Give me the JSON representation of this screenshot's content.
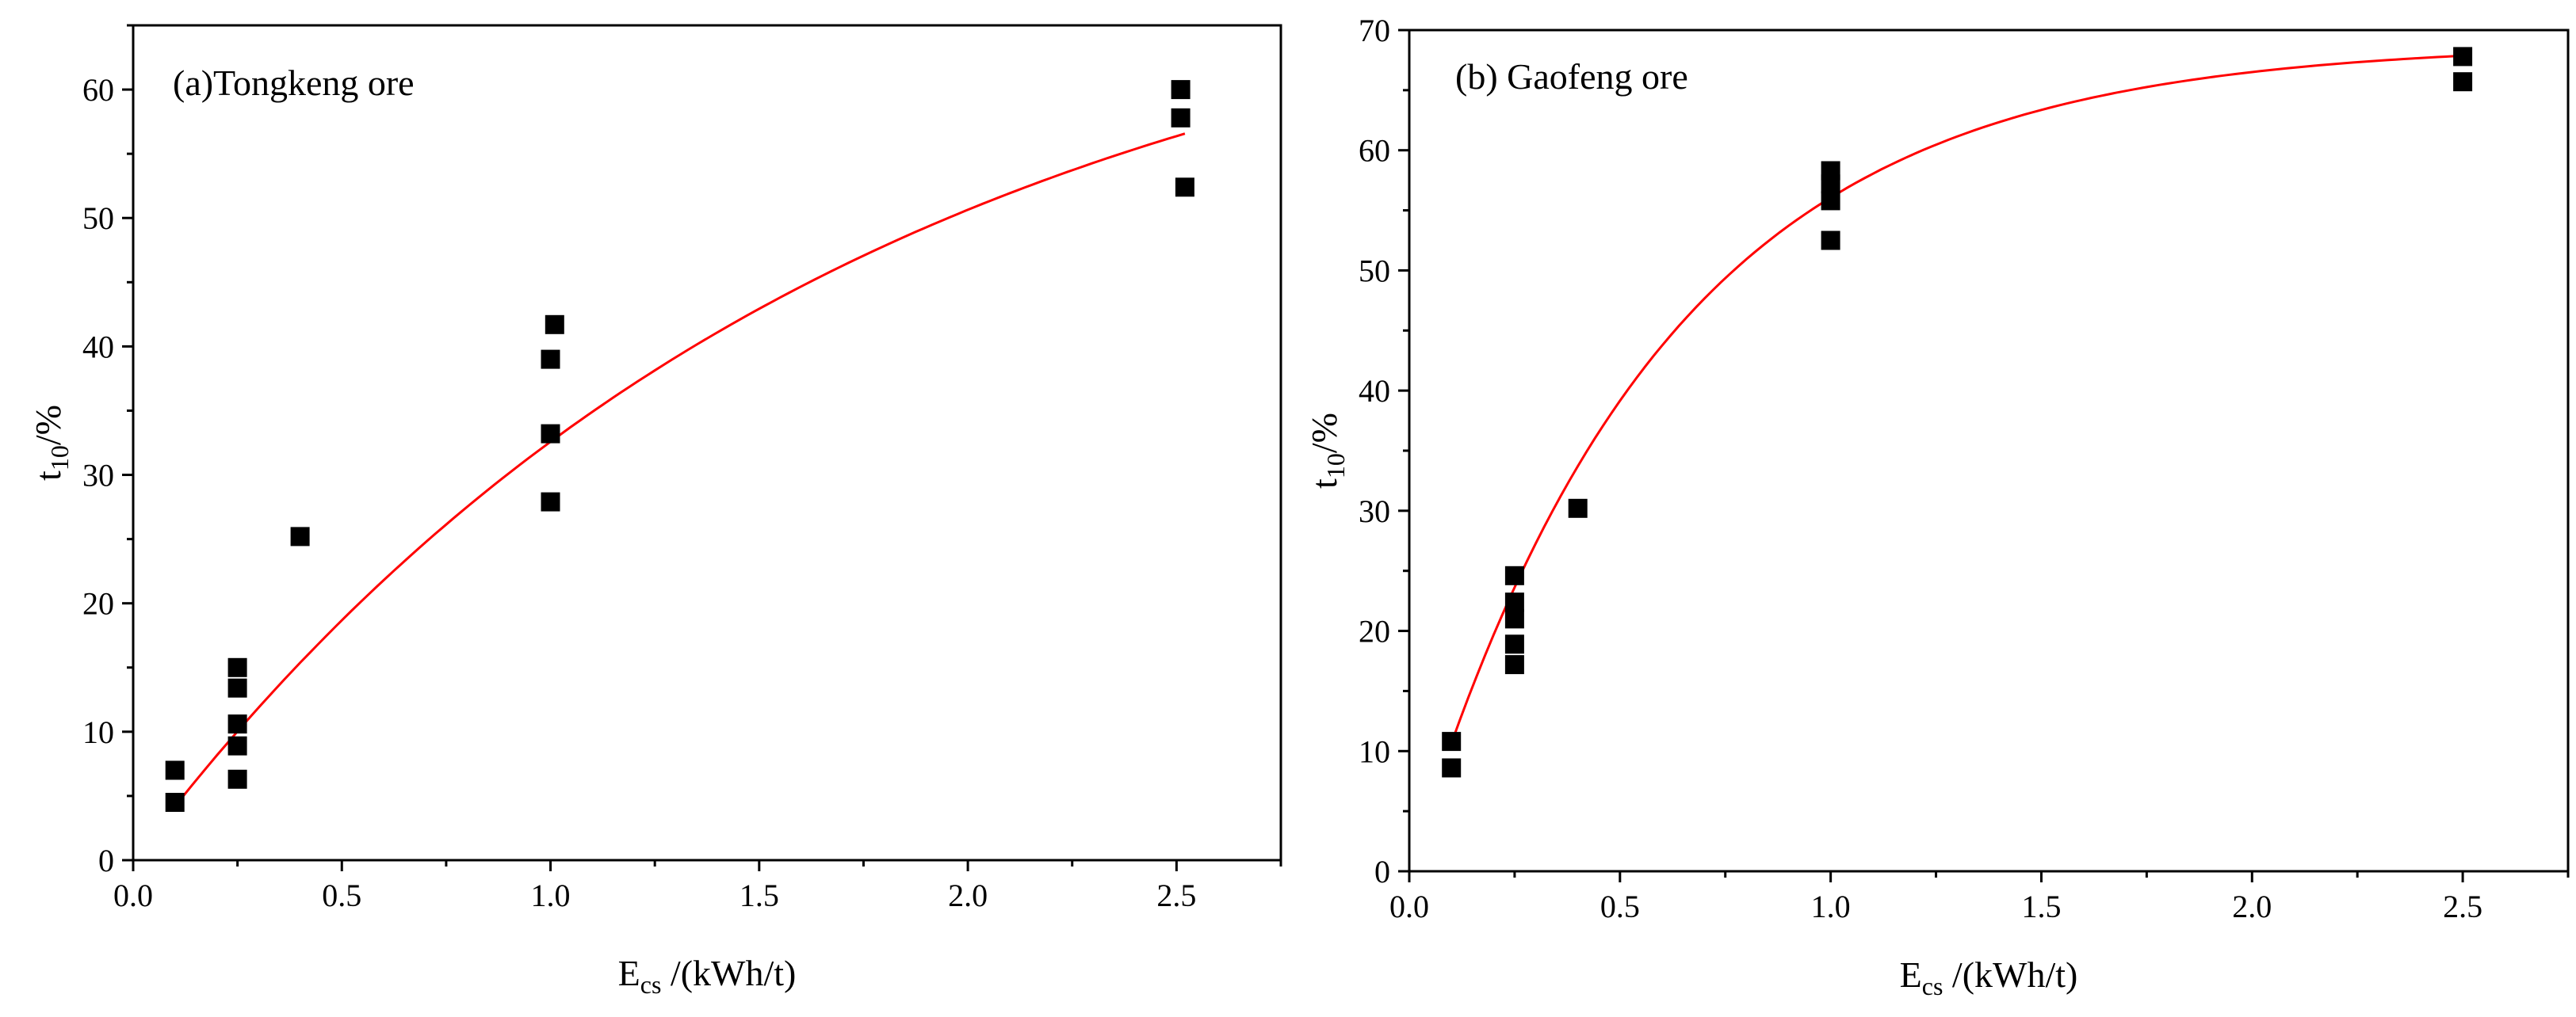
{
  "chart_data": [
    {
      "type": "scatter",
      "panel": "a",
      "title": "(a)Tongkeng ore",
      "xlabel_main": "E",
      "xlabel_sub": "cs",
      "xlabel_rest": " /(kWh/t)",
      "ylabel_main": "t",
      "ylabel_sub": "10",
      "ylabel_rest": "/%",
      "xlim": [
        0.0,
        2.75
      ],
      "ylim": [
        0,
        65
      ],
      "xticks": [
        0.0,
        0.5,
        1.0,
        1.5,
        2.0,
        2.5
      ],
      "xtick_labels": [
        "0.0",
        "0.5",
        "1.0",
        "1.5",
        "2.0",
        "2.5"
      ],
      "yticks": [
        0,
        10,
        20,
        30,
        40,
        50,
        60
      ],
      "ytick_labels": [
        "0",
        "10",
        "20",
        "30",
        "40",
        "50",
        "60"
      ],
      "points": [
        {
          "x": 0.1,
          "y": 7.0
        },
        {
          "x": 0.1,
          "y": 4.5
        },
        {
          "x": 0.25,
          "y": 15.0
        },
        {
          "x": 0.25,
          "y": 13.4
        },
        {
          "x": 0.25,
          "y": 10.6
        },
        {
          "x": 0.25,
          "y": 8.9
        },
        {
          "x": 0.25,
          "y": 6.3
        },
        {
          "x": 0.4,
          "y": 25.2
        },
        {
          "x": 1.0,
          "y": 27.9
        },
        {
          "x": 1.0,
          "y": 33.2
        },
        {
          "x": 1.0,
          "y": 39.0
        },
        {
          "x": 1.01,
          "y": 41.7
        },
        {
          "x": 2.51,
          "y": 60.0
        },
        {
          "x": 2.51,
          "y": 57.8
        },
        {
          "x": 2.52,
          "y": 52.4
        }
      ],
      "fit": {
        "model": "A*(1-exp(-b*x))",
        "A": 73.1,
        "b": 0.59,
        "x_range": [
          0.1,
          2.52
        ],
        "color": "#ff0000"
      }
    },
    {
      "type": "scatter",
      "panel": "b",
      "title": "(b) Gaofeng ore",
      "xlabel_main": "E",
      "xlabel_sub": "cs",
      "xlabel_rest": " /(kWh/t)",
      "ylabel_main": "t",
      "ylabel_sub": "10",
      "ylabel_rest": "/%",
      "xlim": [
        0.0,
        2.75
      ],
      "ylim": [
        0,
        70
      ],
      "xticks": [
        0.0,
        0.5,
        1.0,
        1.5,
        2.0,
        2.5
      ],
      "xtick_labels": [
        "0.0",
        "0.5",
        "1.0",
        "1.5",
        "2.0",
        "2.5"
      ],
      "yticks": [
        0,
        10,
        20,
        30,
        40,
        50,
        60,
        70
      ],
      "ytick_labels": [
        "0",
        "10",
        "20",
        "30",
        "40",
        "50",
        "60",
        "70"
      ],
      "points": [
        {
          "x": 0.1,
          "y": 10.8
        },
        {
          "x": 0.1,
          "y": 8.6
        },
        {
          "x": 0.25,
          "y": 24.6
        },
        {
          "x": 0.25,
          "y": 22.4
        },
        {
          "x": 0.25,
          "y": 21.0
        },
        {
          "x": 0.25,
          "y": 18.9
        },
        {
          "x": 0.25,
          "y": 17.2
        },
        {
          "x": 0.4,
          "y": 30.2
        },
        {
          "x": 1.0,
          "y": 58.3
        },
        {
          "x": 1.0,
          "y": 57.2
        },
        {
          "x": 1.0,
          "y": 55.8
        },
        {
          "x": 1.0,
          "y": 52.5
        },
        {
          "x": 2.5,
          "y": 67.8
        },
        {
          "x": 2.5,
          "y": 65.7
        }
      ],
      "fit": {
        "model": "A*(1-exp(-b*x))",
        "A": 68.9,
        "b": 1.68,
        "x_range": [
          0.1,
          2.5
        ],
        "color": "#ff0000"
      }
    }
  ]
}
